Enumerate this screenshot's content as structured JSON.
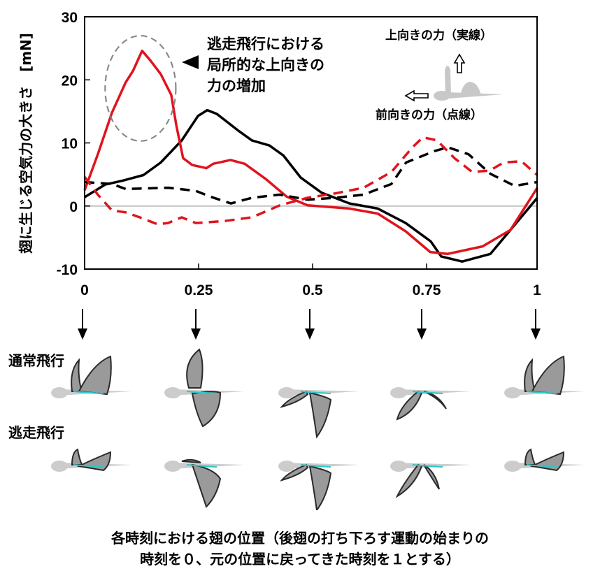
{
  "chart_data": {
    "type": "line",
    "title": "",
    "xlabel": "各時刻における翅の位置（後翅の打ち下ろす運動の始まりの時刻を０、元の位置に戻ってきた時刻を１とする）",
    "ylabel": "翅に生じる空気力の大きさ　[mN]",
    "xlim": [
      0,
      1
    ],
    "ylim": [
      -10,
      30
    ],
    "xticks": [
      0,
      0.25,
      0.5,
      0.75,
      1
    ],
    "xtick_labels": [
      "0",
      "0.25",
      "0.5",
      "0.75",
      "1"
    ],
    "yticks": [
      -10,
      0,
      10,
      20,
      30
    ],
    "ytick_labels": [
      "-10",
      "0",
      "10",
      "20",
      "30"
    ],
    "grid": false,
    "zero_line": true,
    "series": [
      {
        "name": "通常飛行 上向きの力",
        "color": "#000000",
        "style": "solid",
        "x": [
          0,
          0.045,
          0.083,
          0.129,
          0.167,
          0.213,
          0.249,
          0.269,
          0.29,
          0.336,
          0.367,
          0.405,
          0.436,
          0.474,
          0.52,
          0.581,
          0.643,
          0.704,
          0.759,
          0.782,
          0.828,
          0.89,
          0.993
        ],
        "values": [
          1.4,
          3.4,
          4.0,
          4.9,
          6.9,
          10.4,
          14.3,
          15.2,
          14.6,
          12.0,
          10.4,
          9.6,
          8.0,
          4.5,
          2.1,
          0.4,
          -0.4,
          -2.7,
          -5.6,
          -8.0,
          -8.8,
          -7.6,
          1.3
        ]
      },
      {
        "name": "逃走飛行 上向きの力",
        "color": "#e0141e",
        "style": "solid",
        "x": [
          0,
          0.029,
          0.06,
          0.09,
          0.106,
          0.126,
          0.144,
          0.167,
          0.19,
          0.201,
          0.216,
          0.236,
          0.267,
          0.282,
          0.32,
          0.351,
          0.397,
          0.443,
          0.489,
          0.581,
          0.643,
          0.704,
          0.758,
          0.796,
          0.873,
          0.934,
          0.993
        ],
        "values": [
          2.5,
          8.2,
          14.8,
          19.6,
          21.4,
          24.6,
          23.1,
          20.9,
          17.6,
          12.8,
          7.6,
          6.5,
          6.0,
          6.7,
          7.3,
          6.7,
          4.3,
          1.5,
          0.1,
          -0.4,
          -1.2,
          -4.0,
          -7.3,
          -7.6,
          -6.4,
          -3.8,
          2.9
        ]
      },
      {
        "name": "通常飛行 前向きの力",
        "color": "#000000",
        "style": "dashed",
        "x": [
          0,
          0.06,
          0.09,
          0.183,
          0.244,
          0.275,
          0.321,
          0.367,
          0.428,
          0.489,
          0.55,
          0.612,
          0.673,
          0.705,
          0.767,
          0.797,
          0.842,
          0.89,
          0.943,
          0.993
        ],
        "values": [
          3.8,
          3.5,
          2.7,
          2.9,
          2.4,
          1.5,
          0.4,
          1.3,
          1.8,
          1.0,
          1.3,
          1.8,
          3.5,
          6.9,
          8.7,
          9.3,
          8.2,
          5.1,
          3.2,
          3.8
        ]
      },
      {
        "name": "逃走飛行 前向きの力",
        "color": "#e0141e",
        "style": "dashed",
        "x": [
          0,
          0.029,
          0.06,
          0.09,
          0.121,
          0.16,
          0.183,
          0.213,
          0.244,
          0.305,
          0.367,
          0.428,
          0.489,
          0.55,
          0.612,
          0.673,
          0.719,
          0.742,
          0.773,
          0.811,
          0.85,
          0.888,
          0.919,
          0.958,
          0.993
        ],
        "values": [
          4.6,
          1.8,
          -0.7,
          -1.0,
          -1.8,
          -2.9,
          -2.7,
          -1.8,
          -2.7,
          -2.4,
          -1.8,
          0.1,
          1.3,
          2.0,
          2.9,
          5.4,
          9.3,
          10.9,
          10.4,
          7.6,
          5.4,
          5.6,
          6.9,
          7.1,
          4.9
        ]
      }
    ],
    "annotations": {
      "highlight": {
        "text_lines": [
          "逃走飛行における",
          "局所的な上向きの",
          "力の増加"
        ],
        "x_range": [
          0.045,
          0.2
        ],
        "y_range": [
          10.3,
          27
        ]
      },
      "legend_up": "上向きの力（実線）",
      "legend_forward": "前向きの力（点線）"
    }
  },
  "frames": {
    "times": [
      "0",
      "0.25",
      "0.5",
      "0.75",
      "1"
    ],
    "rows": [
      {
        "label": "通常飛行",
        "poses": [
          "up-v",
          "up-down",
          "down-both",
          "down-fore-up",
          "up-v"
        ]
      },
      {
        "label": "逃走飛行",
        "poses": [
          "flat-v",
          "down-hind",
          "down-both",
          "down-both-narrow",
          "flat-v"
        ]
      }
    ],
    "colors": {
      "wing_mesh": "#2a2a2a",
      "wing_fill": "#9a9a9a",
      "vein": "#2fc6c6",
      "body": "#cccccc"
    }
  },
  "caption_lines": [
    "各時刻における翅の位置（後翅の打ち下ろす運動の始まりの",
    "時刻を０、元の位置に戻ってきた時刻を１とする）"
  ]
}
